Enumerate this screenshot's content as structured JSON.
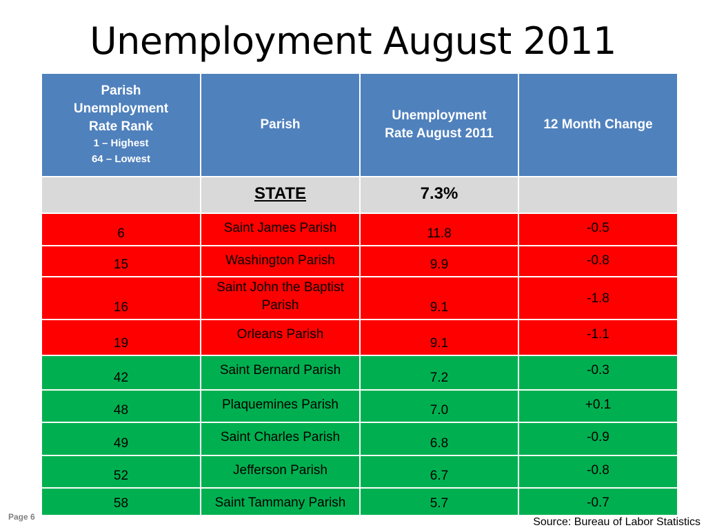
{
  "title": "Unemployment August 2011",
  "table": {
    "headers": {
      "rank": [
        "Parish",
        "Unemployment",
        "Rate Rank"
      ],
      "rank_sub": [
        "1 – Highest",
        "64 – Lowest"
      ],
      "parish": "Parish",
      "rate": [
        "Unemployment",
        "Rate August 2011"
      ],
      "change": "12 Month Change"
    },
    "state": {
      "rank": "",
      "label": "STATE",
      "rate": "7.3%",
      "change": ""
    },
    "rows": [
      {
        "rank": "6",
        "parish": "Saint James Parish",
        "rate": "11.8",
        "change": "-0.5",
        "status": "red"
      },
      {
        "rank": "15",
        "parish": "Washington Parish",
        "rate": "9.9",
        "change": "-0.8",
        "status": "red"
      },
      {
        "rank": "16",
        "parish": "Saint John the Baptist Parish",
        "rate": "9.1",
        "change": "-1.8",
        "status": "red"
      },
      {
        "rank": "19",
        "parish": "Orleans Parish",
        "rate": "9.1",
        "change": "-1.1",
        "status": "red"
      },
      {
        "rank": "42",
        "parish": "Saint Bernard Parish",
        "rate": "7.2",
        "change": "-0.3",
        "status": "green"
      },
      {
        "rank": "48",
        "parish": "Plaquemines Parish",
        "rate": "7.0",
        "change": "+0.1",
        "status": "green"
      },
      {
        "rank": "49",
        "parish": "Saint Charles Parish",
        "rate": "6.8",
        "change": "-0.9",
        "status": "green"
      },
      {
        "rank": "52",
        "parish": "Jefferson Parish",
        "rate": "6.7",
        "change": "-0.8",
        "status": "green"
      },
      {
        "rank": "58",
        "parish": "Saint Tammany Parish",
        "rate": "5.7",
        "change": "-0.7",
        "status": "green"
      }
    ]
  },
  "colors": {
    "header": "#4f81bd",
    "state_row": "#d9d9d9",
    "above_state": "#ff0000",
    "below_state": "#00b050"
  },
  "footer": {
    "page": "Page 6",
    "source": "Source: Bureau of Labor Statistics"
  }
}
